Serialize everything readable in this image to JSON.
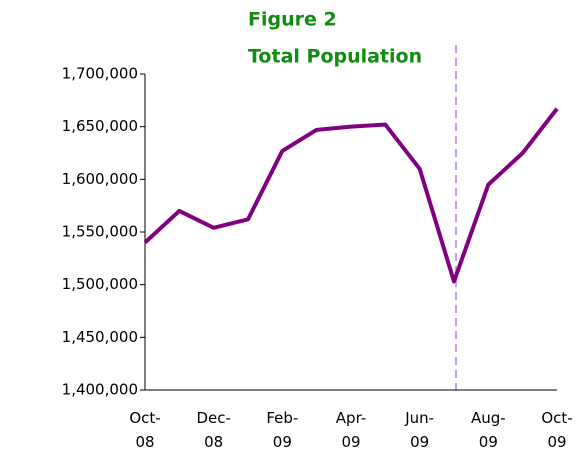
{
  "chart_data": {
    "type": "line",
    "title": "Figure 2",
    "subtitle": "Total Population",
    "categories": [
      "Oct-08",
      null,
      "Dec-08",
      null,
      "Feb-09",
      null,
      "Apr-09",
      null,
      "Jun-09",
      null,
      "Aug-09",
      null,
      "Oct-09"
    ],
    "series": [
      {
        "name": "Total Population",
        "color": "#800080",
        "values": [
          1540000,
          1570000,
          1554000,
          1562000,
          1627000,
          1647000,
          1650000,
          1652000,
          1610000,
          1503000,
          1595000,
          1625000,
          1667000
        ]
      }
    ],
    "ylim": [
      1400000,
      1700000
    ],
    "yticks": [
      {
        "value": 1400000,
        "label": "1,400,000"
      },
      {
        "value": 1450000,
        "label": "1,450,000"
      },
      {
        "value": 1500000,
        "label": "1,500,000"
      },
      {
        "value": 1550000,
        "label": "1,550,000"
      },
      {
        "value": 1600000,
        "label": "1,600,000"
      },
      {
        "value": 1650000,
        "label": "1,650,000"
      },
      {
        "value": 1700000,
        "label": "1,700,000"
      }
    ],
    "grid": false
  }
}
